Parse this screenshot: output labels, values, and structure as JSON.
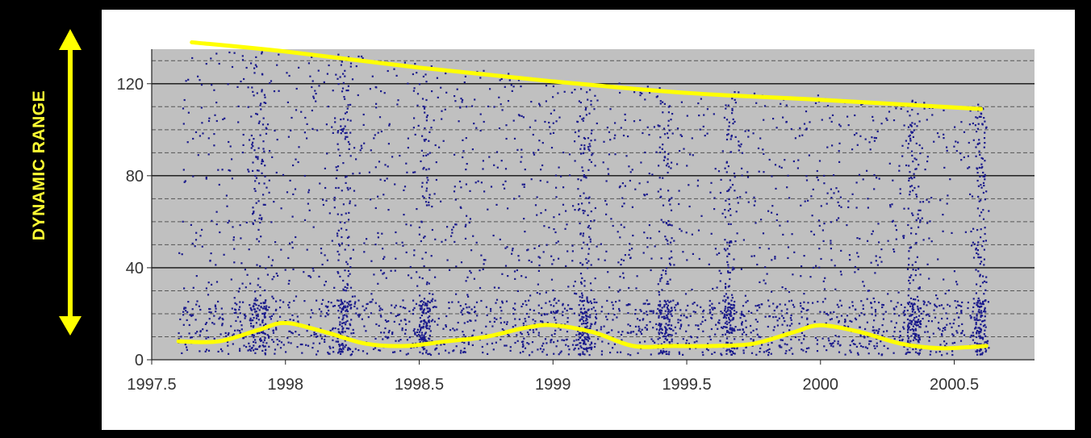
{
  "annotation": {
    "label": "DYNAMIC RANGE",
    "color": "#ffff00"
  },
  "chart_data": {
    "type": "scatter",
    "title": "",
    "xlabel": "",
    "ylabel": "",
    "xlim": [
      1997.5,
      2000.8
    ],
    "ylim": [
      0,
      135
    ],
    "x_ticks": [
      {
        "value": 1997.5,
        "label": "1997.5"
      },
      {
        "value": 1998,
        "label": "1998"
      },
      {
        "value": 1998.5,
        "label": "1998.5"
      },
      {
        "value": 1999,
        "label": "1999"
      },
      {
        "value": 1999.5,
        "label": "1999.5"
      },
      {
        "value": 2000,
        "label": "2000"
      },
      {
        "value": 2000.5,
        "label": "2000.5"
      }
    ],
    "y_ticks": [
      {
        "value": 0,
        "label": "0"
      },
      {
        "value": 40,
        "label": "40"
      },
      {
        "value": 80,
        "label": "80"
      },
      {
        "value": 120,
        "label": "120"
      }
    ],
    "major_gridlines": [
      40,
      80,
      120
    ],
    "minor_gridlines": [
      10,
      20,
      30,
      50,
      60,
      70,
      90,
      100,
      110,
      130
    ],
    "grid": true,
    "plot_background": "#c0c0c0",
    "point_color": "#1a1a8c",
    "scatter_x_range": [
      1997.6,
      2000.63
    ],
    "scatter_point_count": 4200,
    "upper_envelope": {
      "color": "#ffff00",
      "x": [
        1997.65,
        1998.0,
        1998.5,
        1999.0,
        1999.5,
        2000.0,
        2000.6
      ],
      "y": [
        138,
        134,
        127,
        121,
        116,
        113,
        109
      ]
    },
    "lower_envelope": {
      "color": "#ffff00",
      "x": [
        1997.6,
        1997.75,
        1997.9,
        1998.0,
        1998.15,
        1998.3,
        1998.45,
        1998.6,
        1998.75,
        1998.9,
        1999.0,
        1999.15,
        1999.3,
        1999.45,
        1999.6,
        1999.75,
        1999.9,
        2000.0,
        2000.15,
        2000.3,
        2000.45,
        2000.62
      ],
      "y": [
        8,
        8,
        13,
        16,
        12,
        7,
        6,
        8,
        10,
        14,
        15,
        12,
        6,
        6,
        6,
        7,
        12,
        15,
        12,
        7,
        5,
        6
      ]
    },
    "dense_bands": [
      {
        "x": 1997.9,
        "w": 0.06
      },
      {
        "x": 1998.22,
        "w": 0.05
      },
      {
        "x": 1998.52,
        "w": 0.04
      },
      {
        "x": 1999.12,
        "w": 0.05
      },
      {
        "x": 1999.42,
        "w": 0.05
      },
      {
        "x": 1999.66,
        "w": 0.04
      },
      {
        "x": 2000.35,
        "w": 0.05
      },
      {
        "x": 2000.6,
        "w": 0.04
      }
    ]
  }
}
